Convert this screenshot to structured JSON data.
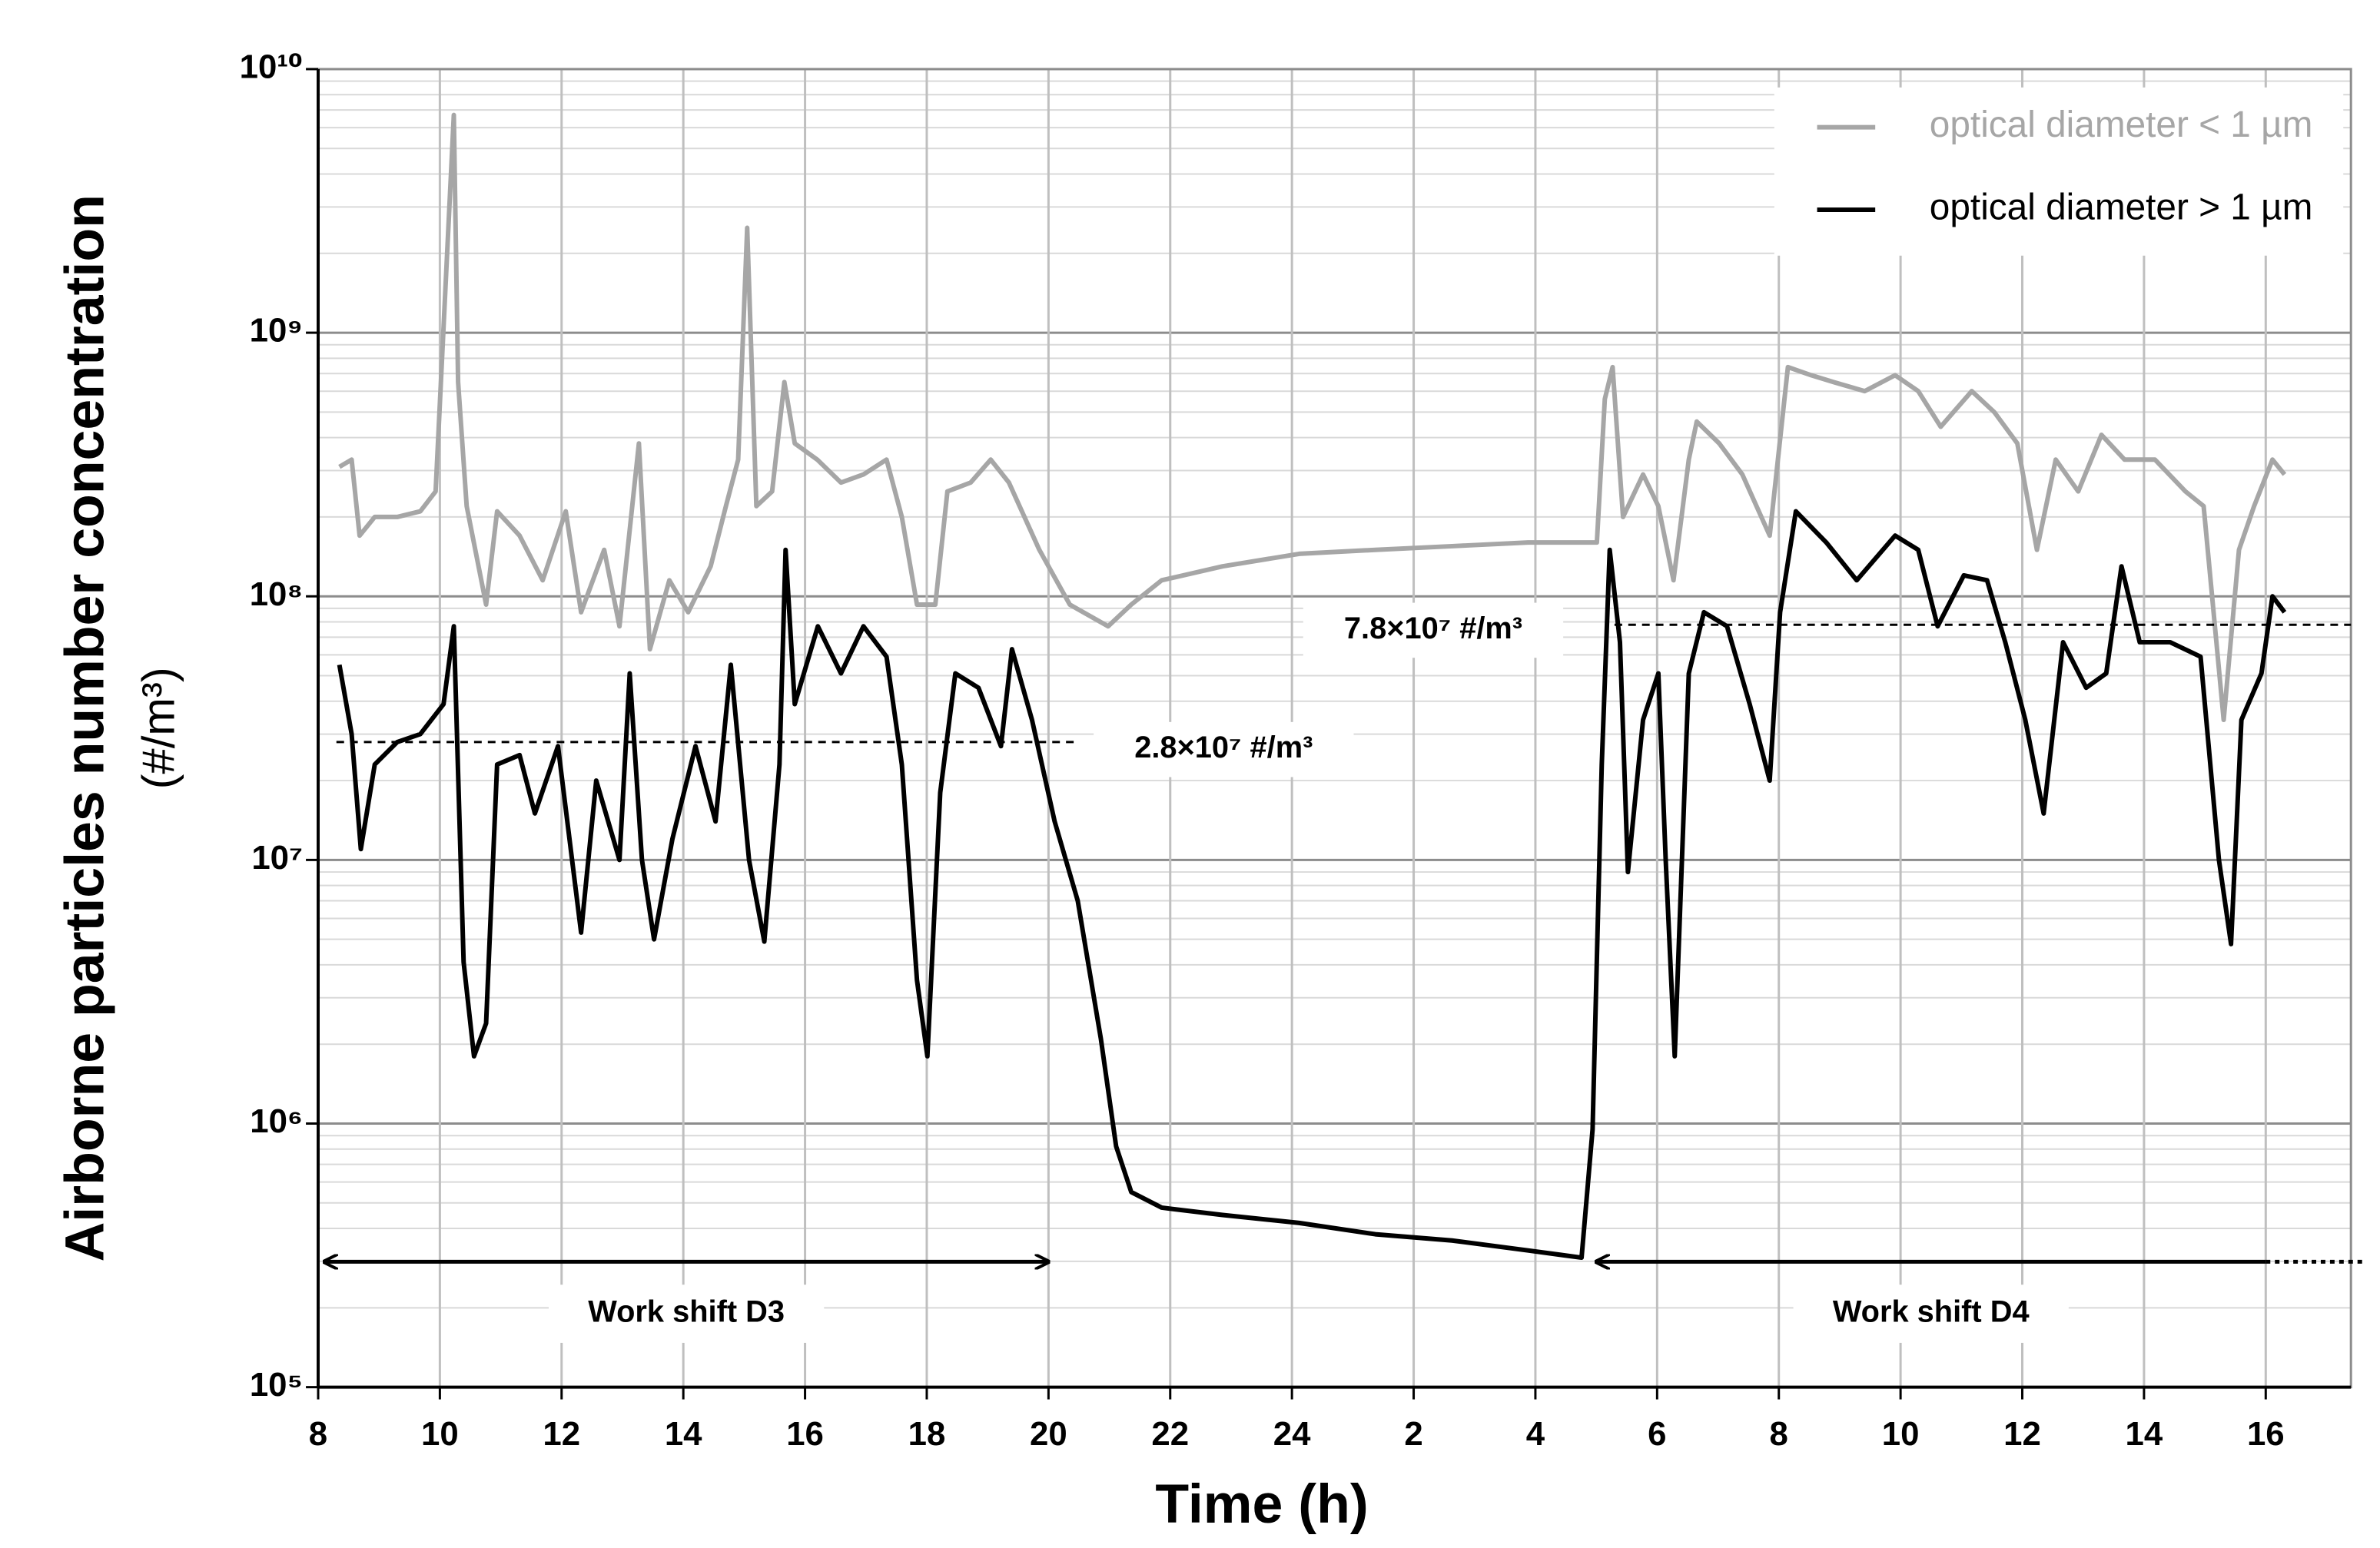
{
  "chart_data": {
    "type": "line",
    "ylabel": "Airborne particles number concentration",
    "ylabel_unit": "(#/m³)",
    "xlabel": "Time (h)",
    "log_y": true,
    "grid": true,
    "minor_grid": true,
    "legend": "upper right",
    "xlim": [
      8,
      41.4
    ],
    "xticks": [
      8,
      10,
      12,
      14,
      16,
      18,
      20,
      22,
      24,
      {
        "value": 26,
        "label": "2"
      },
      {
        "value": 28,
        "label": "4"
      },
      {
        "value": 30,
        "label": "6"
      },
      {
        "value": 32,
        "label": "8"
      },
      {
        "value": 34,
        "label": "10"
      },
      {
        "value": 36,
        "label": "12"
      },
      {
        "value": 38,
        "label": "14"
      },
      {
        "value": 40,
        "label": "16"
      }
    ],
    "ylim": [
      100000,
      10000000000
    ],
    "yticks": [
      {
        "value": 100000,
        "label": "10⁵"
      },
      {
        "value": 1000000,
        "label": "10⁶"
      },
      {
        "value": 10000000,
        "label": "10⁷"
      },
      {
        "value": 100000000,
        "label": "10⁸"
      },
      {
        "value": 1000000000,
        "label": "10⁹"
      },
      {
        "value": 10000000000,
        "label": "10¹⁰"
      }
    ],
    "series": [
      {
        "name": "optical diameter < 1 µm",
        "color": "#a6a6a6",
        "x": [
          8.35,
          8.55,
          8.68,
          8.93,
          9.3,
          9.68,
          9.93,
          10.23,
          10.3,
          10.44,
          10.76,
          10.94,
          11.31,
          11.69,
          12.07,
          12.32,
          12.7,
          12.95,
          13.27,
          13.45,
          13.77,
          14.08,
          14.45,
          14.7,
          14.9,
          15.05,
          15.2,
          15.46,
          15.66,
          15.83,
          16.2,
          16.59,
          16.96,
          17.34,
          17.59,
          17.84,
          18.14,
          18.34,
          18.72,
          19.05,
          19.35,
          19.85,
          20.35,
          20.98,
          21.36,
          21.86,
          22.86,
          24.12,
          25.37,
          26.63,
          27.88,
          29.01,
          29.14,
          29.27,
          29.44,
          29.77,
          30.02,
          30.27,
          30.52,
          30.65,
          31.02,
          31.4,
          31.85,
          32.15,
          32.53,
          32.9,
          33.41,
          33.91,
          34.29,
          34.66,
          35.17,
          35.54,
          35.92,
          36.24,
          36.55,
          36.92,
          37.3,
          37.68,
          38.18,
          38.68,
          38.98,
          39.31,
          39.56,
          39.81,
          40.11,
          40.31
        ],
        "values": [
          310000000,
          330000000,
          170000000,
          200000000,
          200000000,
          210000000,
          250000000,
          6700000000,
          650000000,
          220000000,
          93000000,
          210000000,
          170000000,
          115000000,
          210000000,
          87000000,
          150000000,
          77000000,
          380000000,
          63000000,
          115000000,
          87000000,
          130000000,
          220000000,
          330000000,
          2500000000,
          220000000,
          250000000,
          650000000,
          380000000,
          330000000,
          270000000,
          290000000,
          330000000,
          200000000,
          93000000,
          93000000,
          250000000,
          270000000,
          330000000,
          270000000,
          150000000,
          93000000,
          77000000,
          93000000,
          115000000,
          130000000,
          145000000,
          150000000,
          155000000,
          160000000,
          160000000,
          560000000,
          740000000,
          200000000,
          290000000,
          220000000,
          115000000,
          330000000,
          460000000,
          380000000,
          290000000,
          170000000,
          740000000,
          690000000,
          650000000,
          600000000,
          690000000,
          600000000,
          440000000,
          600000000,
          500000000,
          380000000,
          150000000,
          330000000,
          250000000,
          410000000,
          330000000,
          330000000,
          250000000,
          220000000,
          34000000,
          150000000,
          220000000,
          330000000,
          290000000
        ]
      },
      {
        "name": "optical diameter > 1 µm",
        "color": "#000000",
        "x": [
          8.35,
          8.55,
          8.7,
          8.93,
          9.3,
          9.68,
          10.06,
          10.23,
          10.39,
          10.56,
          10.76,
          10.94,
          11.31,
          11.56,
          11.94,
          12.32,
          12.57,
          12.95,
          13.12,
          13.32,
          13.52,
          13.82,
          14.2,
          14.53,
          14.78,
          15.08,
          15.33,
          15.58,
          15.68,
          15.83,
          16.21,
          16.59,
          16.96,
          17.34,
          17.59,
          17.84,
          18.01,
          18.22,
          18.47,
          18.85,
          19.22,
          19.4,
          19.73,
          20.1,
          20.48,
          20.86,
          21.11,
          21.36,
          21.86,
          22.86,
          24.12,
          25.37,
          26.63,
          27.88,
          28.76,
          28.94,
          29.09,
          29.22,
          29.39,
          29.52,
          29.77,
          30.02,
          30.14,
          30.29,
          30.52,
          30.77,
          31.15,
          31.52,
          31.85,
          32.02,
          32.28,
          32.78,
          33.28,
          33.91,
          34.29,
          34.61,
          35.04,
          35.42,
          35.72,
          36.05,
          36.35,
          36.67,
          37.05,
          37.38,
          37.63,
          37.93,
          38.43,
          38.93,
          39.23,
          39.43,
          39.6,
          39.93,
          40.11,
          40.31
        ],
        "values": [
          55000000,
          30000000,
          11000000,
          23000000,
          28000000,
          30000000,
          39000000,
          77000000,
          4100000,
          1800000,
          2400000,
          23000000,
          25000000,
          15000000,
          27000000,
          5300000,
          20000000,
          10000000,
          51000000,
          10000000,
          5000000,
          12000000,
          27000000,
          14000000,
          55000000,
          10000000,
          4900000,
          23000000,
          150000000,
          39000000,
          77000000,
          51000000,
          77000000,
          59000000,
          23000000,
          3500000,
          1800000,
          18000000,
          51000000,
          45000000,
          27000000,
          63000000,
          34000000,
          14000000,
          7000000,
          2100000,
          820000,
          550000,
          480000,
          450000,
          420000,
          380000,
          360000,
          330000,
          310000,
          950000,
          23000000,
          150000000,
          67000000,
          9000000,
          34000000,
          51000000,
          10000000,
          1800000,
          51000000,
          87000000,
          77000000,
          39000000,
          20000000,
          87000000,
          210000000,
          160000000,
          115000000,
          170000000,
          150000000,
          77000000,
          120000000,
          115000000,
          67000000,
          34000000,
          15000000,
          67000000,
          45000000,
          51000000,
          130000000,
          67000000,
          67000000,
          59000000,
          10000000,
          4800000,
          34000000,
          51000000,
          100000000,
          87000000
        ]
      }
    ],
    "reference_lines": [
      {
        "label": "2.8×10⁷ #/m³",
        "value": 28000000,
        "x": [
          8.3,
          20.5
        ]
      },
      {
        "label": "7.8×10⁷ #/m³",
        "value": 78000000,
        "x": [
          29.3,
          41.4
        ]
      }
    ],
    "shifts": [
      {
        "label": "Work shift D3",
        "x": [
          8.1,
          20
        ]
      },
      {
        "label": "Work shift D4",
        "x": [
          29,
          40
        ]
      }
    ]
  }
}
